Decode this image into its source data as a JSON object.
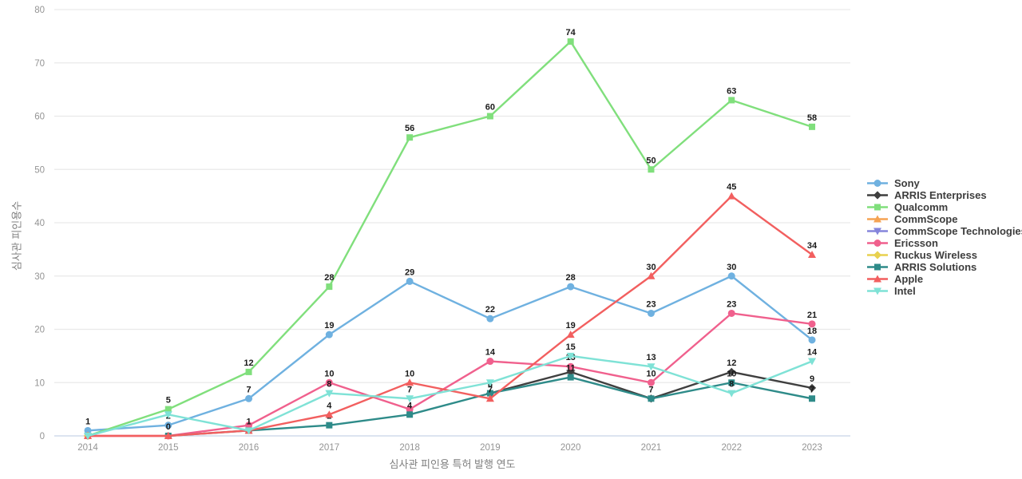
{
  "axes": {
    "y_title": "심사관 피인용수",
    "x_title": "심사관 피인용 특허 발행 연도",
    "y_ticks": [
      0,
      10,
      20,
      30,
      40,
      50,
      60,
      70,
      80
    ],
    "x_tick_labels": [
      "2014",
      "2015",
      "2016",
      "2017",
      "2018",
      "2019",
      "2020",
      "2021",
      "2022",
      "2023"
    ]
  },
  "colors": {
    "grid": "#e9e9e9",
    "zero_line": "#c8d4e6",
    "tick_text": "#949494",
    "point_label": "#1a1a1a",
    "background": "#ffffff"
  },
  "chart_data": {
    "type": "line",
    "title": "",
    "xlabel": "심사관 피인용 특허 발행 연도",
    "ylabel": "심사관 피인용수",
    "x": [
      2014,
      2015,
      2016,
      2017,
      2018,
      2019,
      2020,
      2021,
      2022,
      2023
    ],
    "ylim": [
      0,
      80
    ],
    "grid": true,
    "legend_position": "right-center",
    "series": [
      {
        "name": "Sony",
        "color": "#6fb1e0",
        "marker": "circle",
        "values": [
          1,
          2,
          7,
          19,
          29,
          22,
          28,
          23,
          30,
          18
        ],
        "labels": [
          "1",
          "2",
          "7",
          "19",
          "29",
          "22",
          "28",
          "23",
          "30",
          "18"
        ]
      },
      {
        "name": "ARRIS Enterprises",
        "color": "#3f3f3f",
        "marker": "diamond",
        "values": [
          null,
          null,
          null,
          null,
          null,
          8,
          12,
          7,
          12,
          9
        ],
        "labels": [
          "",
          "",
          "",
          "",
          "",
          "",
          "",
          "",
          "12",
          "9"
        ]
      },
      {
        "name": "Qualcomm",
        "color": "#80df7c",
        "marker": "square",
        "values": [
          0,
          5,
          12,
          28,
          56,
          60,
          74,
          50,
          63,
          58
        ],
        "labels": [
          "",
          "5",
          "12",
          "28",
          "56",
          "60",
          "74",
          "50",
          "63",
          "58"
        ]
      },
      {
        "name": "CommScope",
        "color": "#f5a353",
        "marker": "triangle-up",
        "values": [
          0,
          null,
          null,
          null,
          null,
          null,
          null,
          null,
          null,
          null
        ],
        "labels": [
          "",
          "",
          "",
          "",
          "",
          "",
          "",
          "",
          "",
          ""
        ]
      },
      {
        "name": "CommScope Technologies",
        "color": "#8585dc",
        "marker": "triangle-down",
        "values": [
          0,
          null,
          null,
          null,
          null,
          null,
          null,
          null,
          null,
          null
        ],
        "labels": [
          "",
          "",
          "",
          "",
          "",
          "",
          "",
          "",
          "",
          ""
        ]
      },
      {
        "name": "Ericsson",
        "color": "#f0608d",
        "marker": "circle",
        "values": [
          0,
          0,
          2,
          10,
          5,
          14,
          13,
          10,
          23,
          21
        ],
        "labels": [
          "",
          "",
          "",
          "10",
          "",
          "14",
          "13",
          "10",
          "23",
          "21"
        ]
      },
      {
        "name": "Ruckus Wireless",
        "color": "#e8d14f",
        "marker": "diamond",
        "values": [
          0,
          null,
          null,
          null,
          null,
          null,
          null,
          null,
          null,
          null
        ],
        "labels": [
          "",
          "",
          "",
          "",
          "",
          "",
          "",
          "",
          "",
          ""
        ]
      },
      {
        "name": "ARRIS Solutions",
        "color": "#2e8b89",
        "marker": "square",
        "values": [
          null,
          0,
          1,
          2,
          4,
          8,
          11,
          7,
          10,
          7
        ],
        "labels": [
          "",
          "",
          "",
          "2",
          "4",
          "8",
          "11",
          "7",
          "10",
          "7"
        ]
      },
      {
        "name": "Apple",
        "color": "#f25f5f",
        "marker": "triangle-up",
        "values": [
          0,
          0,
          1,
          4,
          10,
          7,
          19,
          30,
          45,
          34
        ],
        "labels": [
          "",
          "0",
          "",
          "4",
          "10",
          "7",
          "19",
          "30",
          "45",
          "34"
        ]
      },
      {
        "name": "Intel",
        "color": "#7fe2d6",
        "marker": "triangle-down",
        "values": [
          0,
          4,
          1,
          8,
          7,
          10,
          15,
          13,
          8,
          14
        ],
        "labels": [
          "",
          "",
          "1",
          "8",
          "7",
          "",
          "15",
          "13",
          "8",
          "14"
        ]
      }
    ]
  }
}
